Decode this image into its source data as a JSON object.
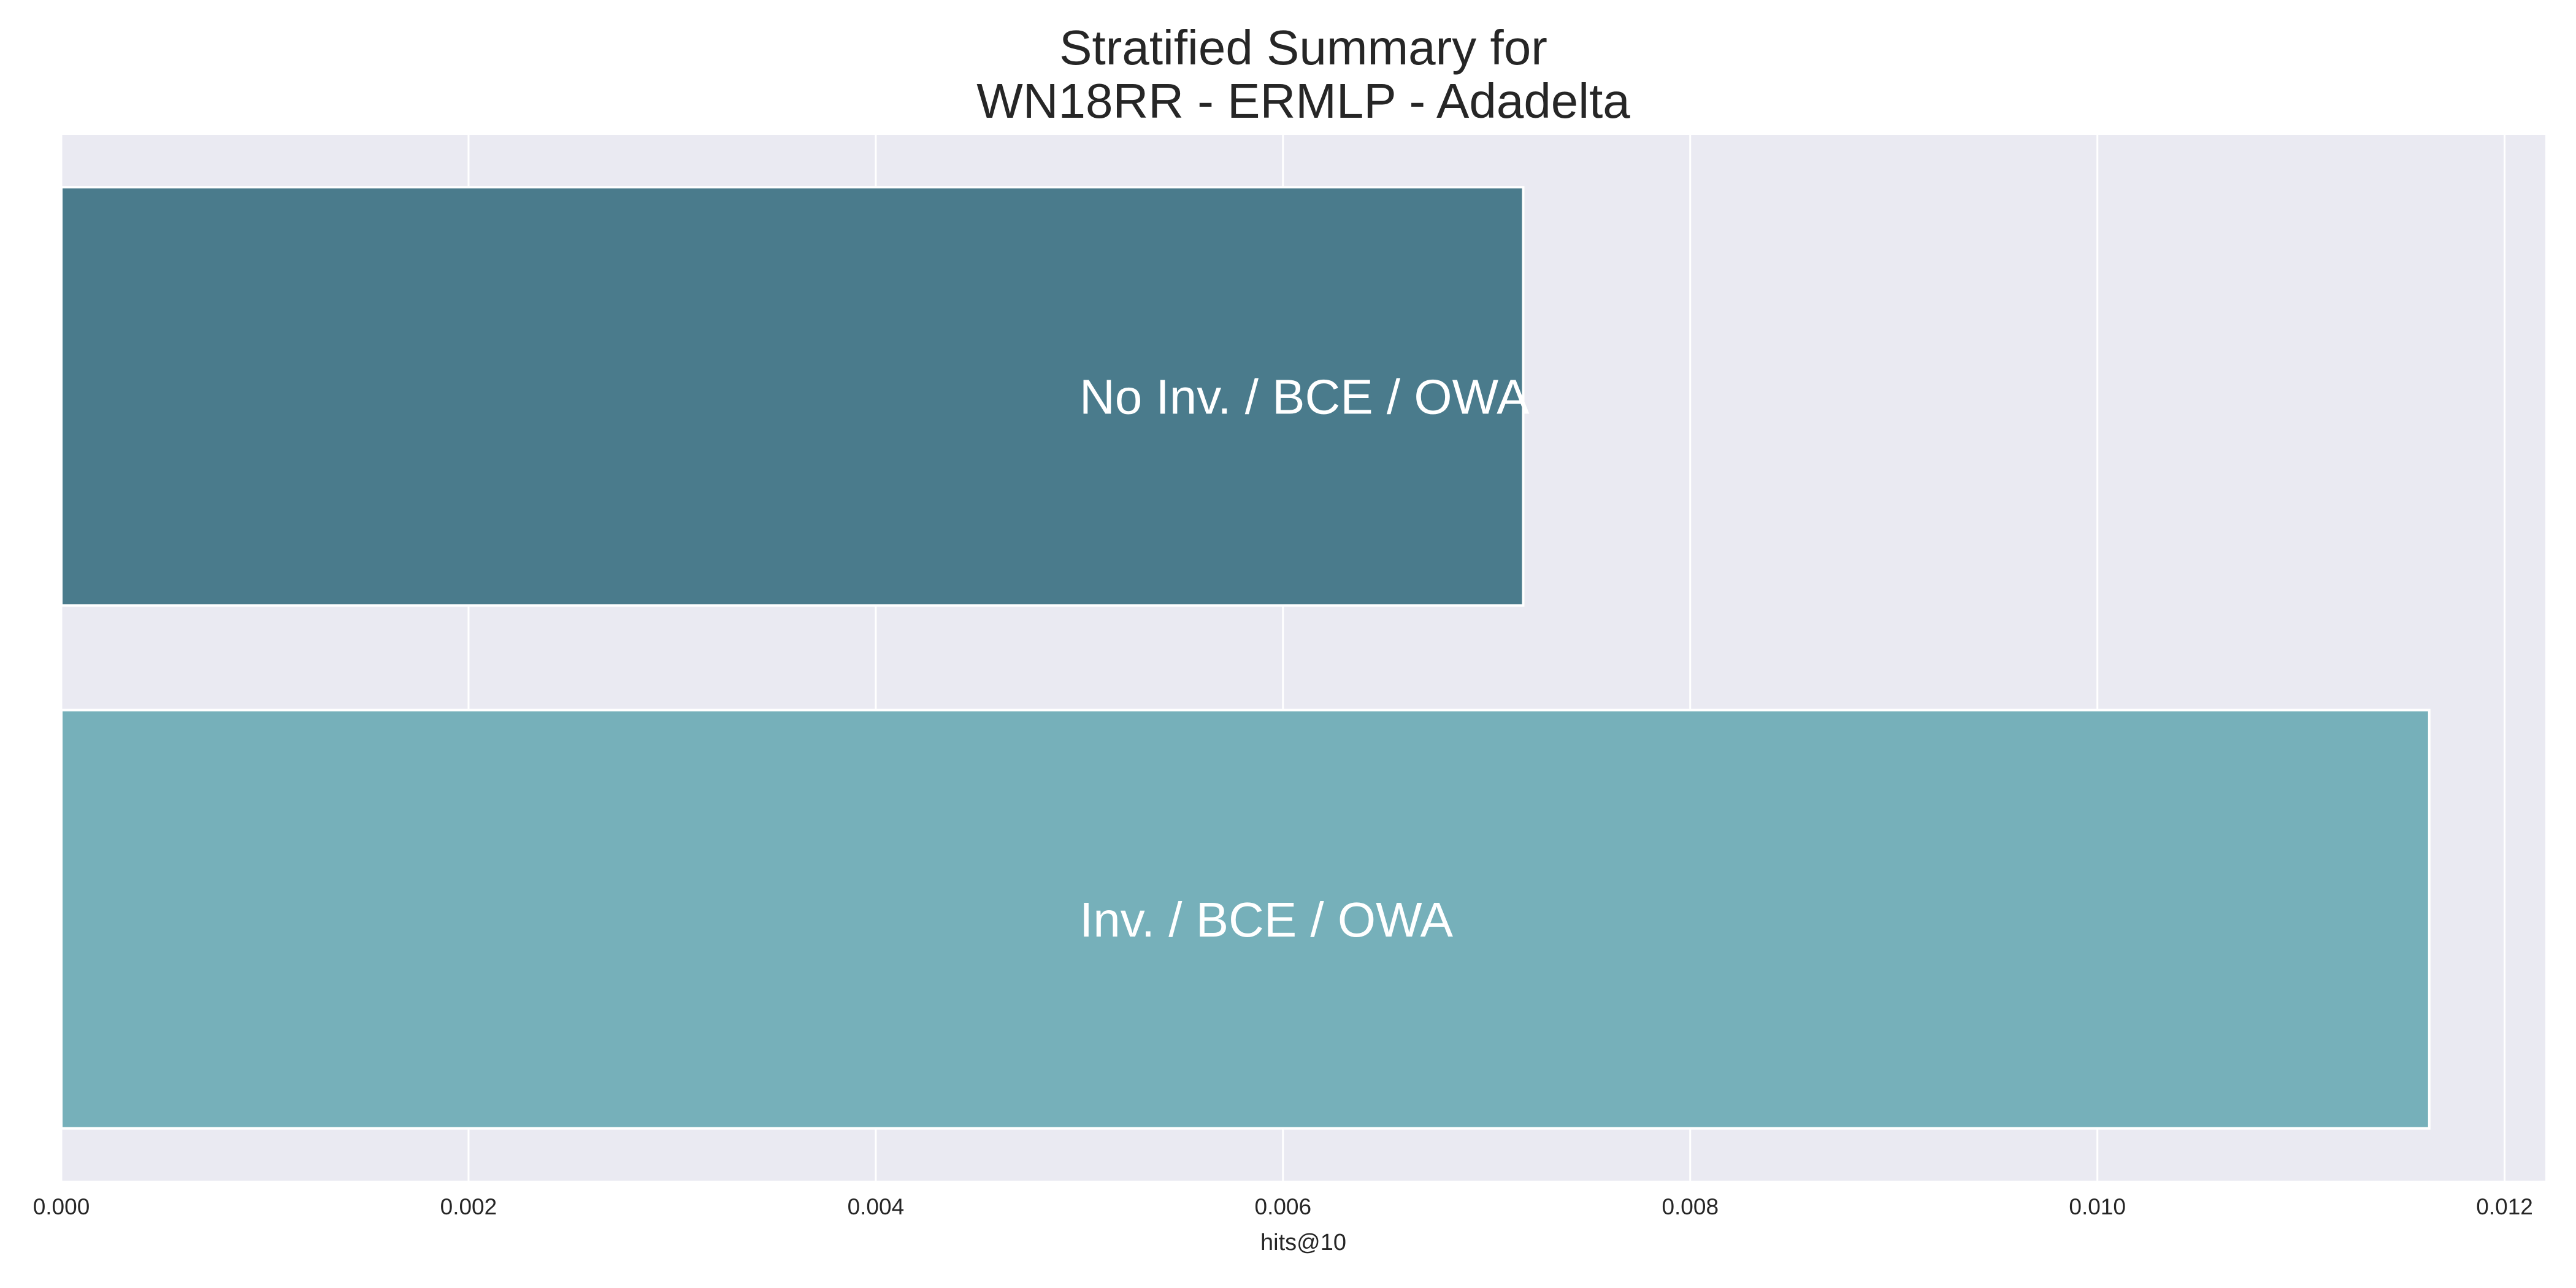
{
  "chart_data": {
    "type": "bar",
    "orientation": "horizontal",
    "title_lines": [
      "Stratified Summary for",
      "WN18RR - ERMLP - Adadelta"
    ],
    "xlabel": "hits@10",
    "ylabel": "",
    "xlim": [
      0,
      0.0122
    ],
    "xticks": [
      "0.000",
      "0.002",
      "0.004",
      "0.006",
      "0.008",
      "0.010",
      "0.012"
    ],
    "xtick_values": [
      0,
      0.002,
      0.004,
      0.006,
      0.008,
      0.01,
      0.012
    ],
    "grid": true,
    "legend": "none",
    "categories": [
      "No Inv. / BCE / OWA",
      "Inv. / BCE / OWA"
    ],
    "values": [
      0.00718,
      0.01163
    ],
    "colors": [
      "#4a7b8c",
      "#76b0ba"
    ],
    "background": "#eaeaf2"
  }
}
